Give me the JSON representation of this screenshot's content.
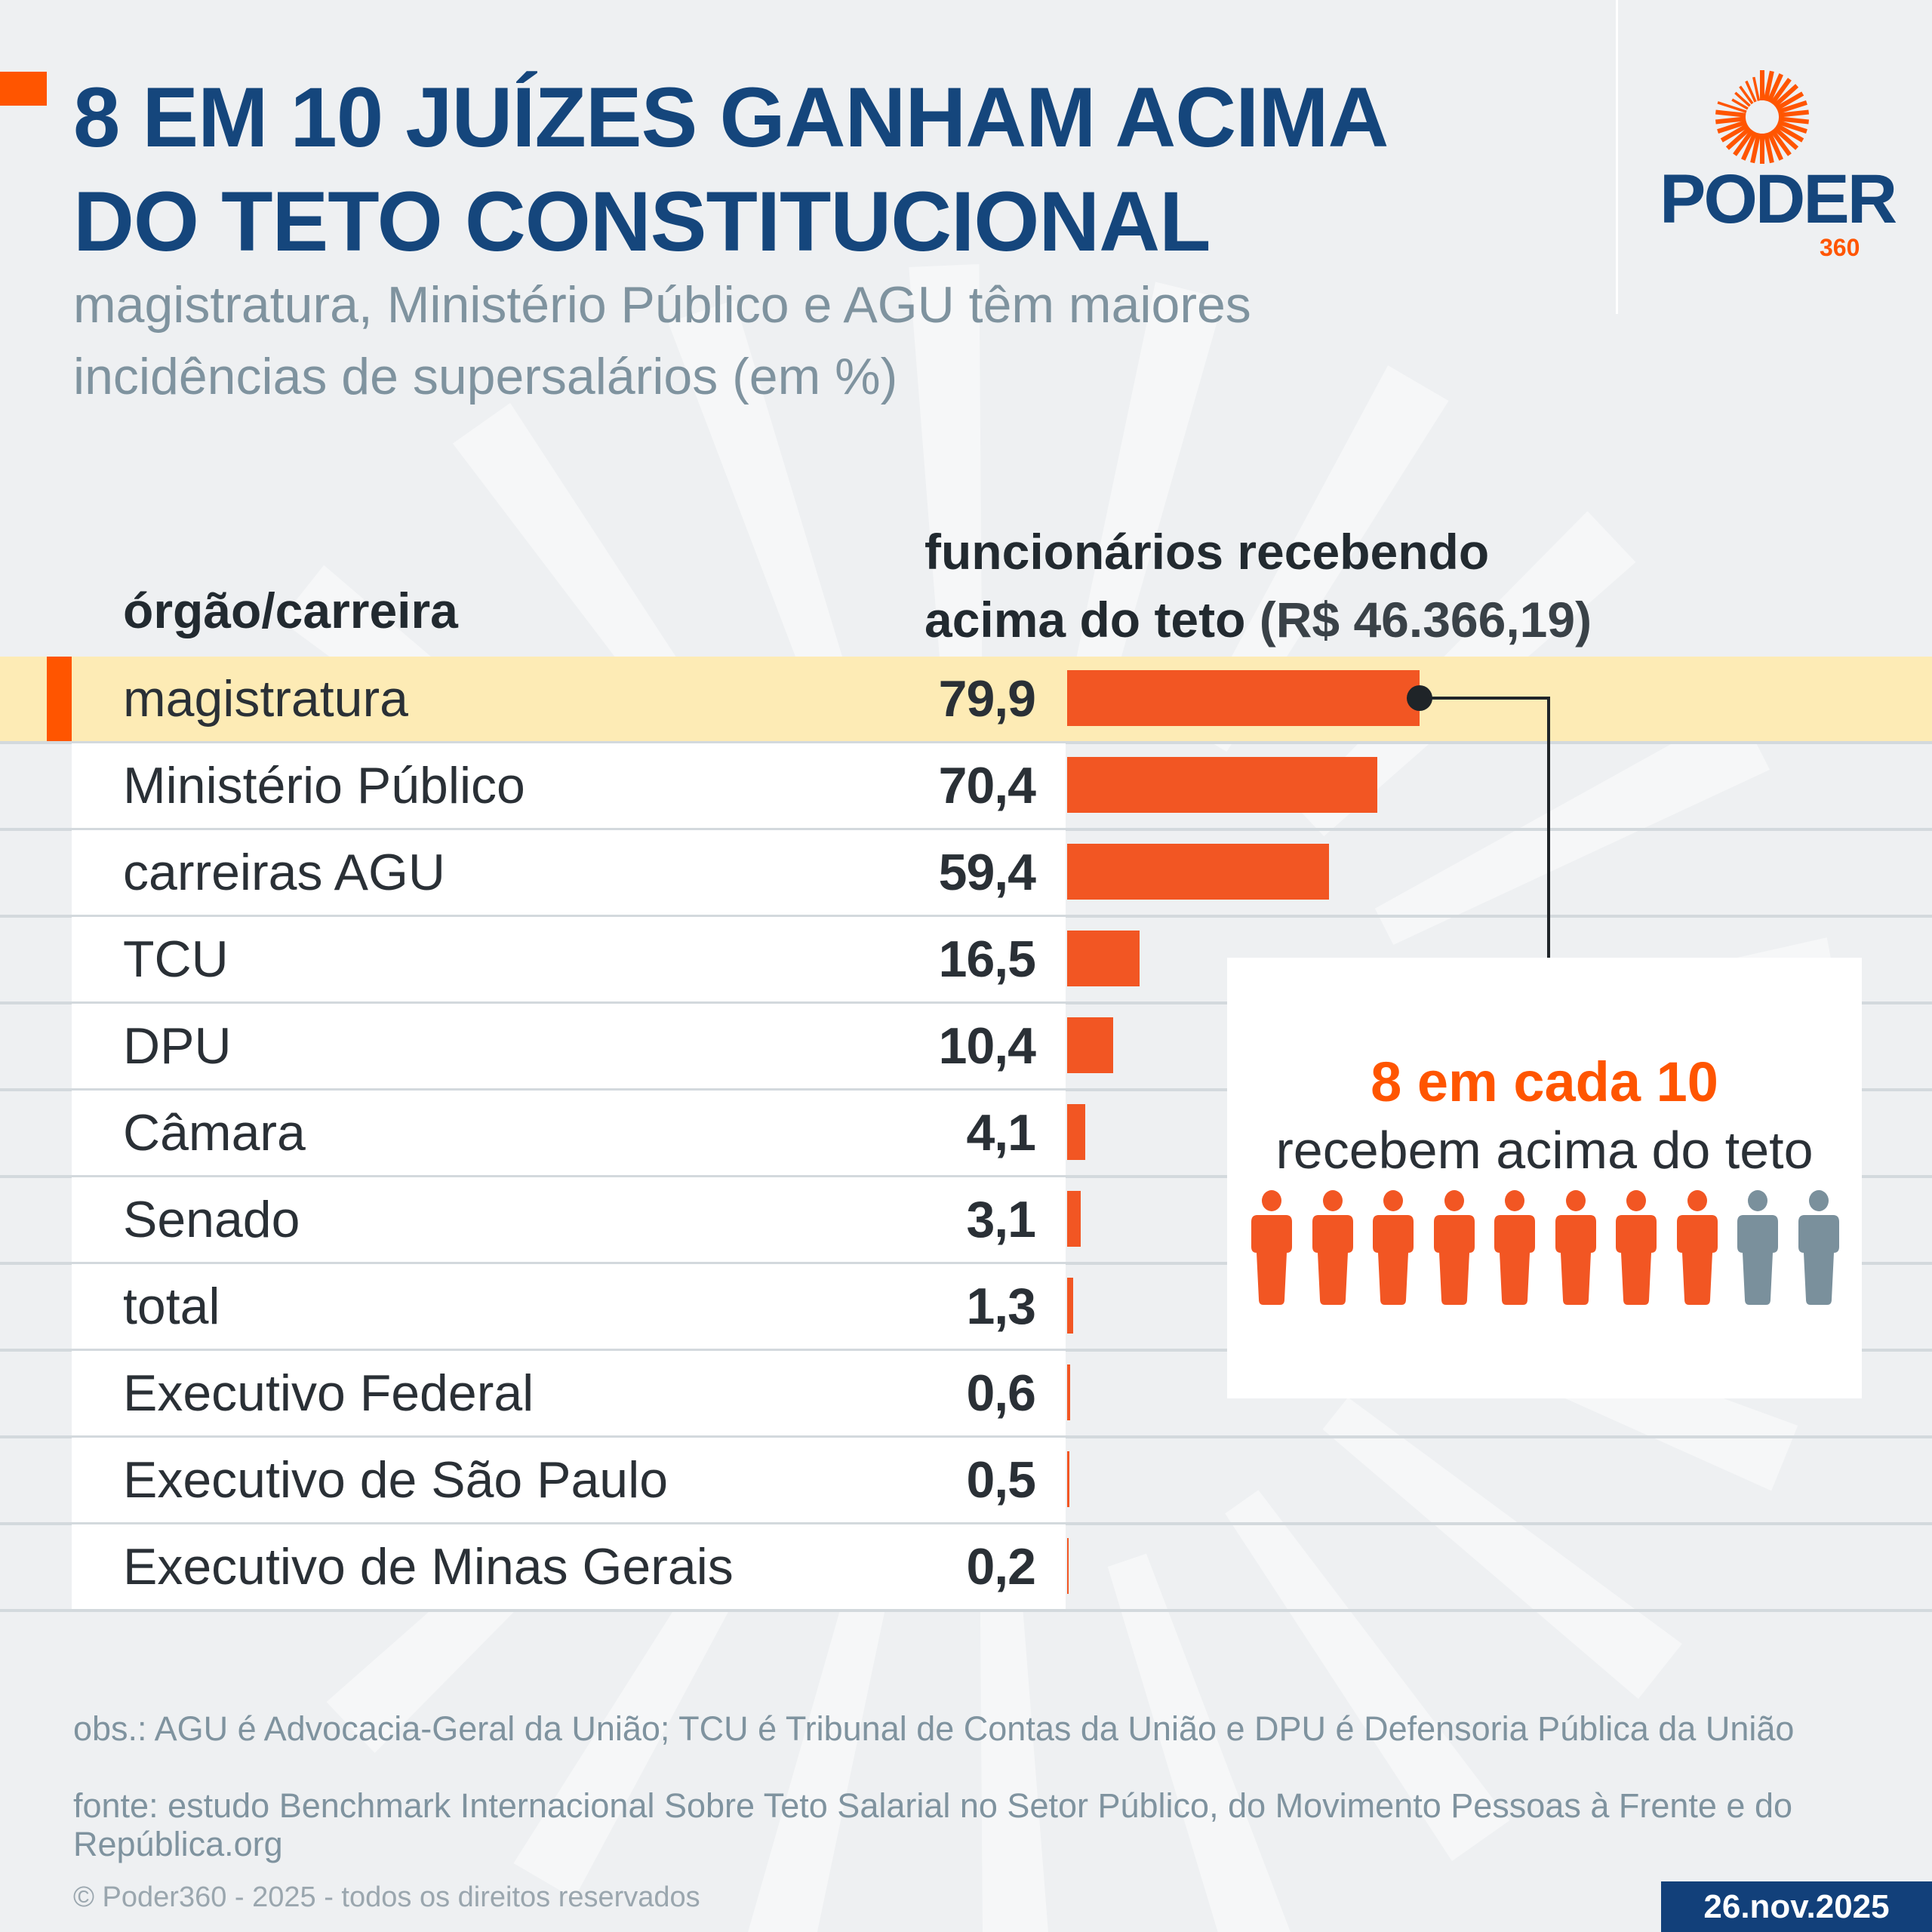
{
  "header": {
    "title_line1": "8 EM 10 JUÍZES GANHAM ACIMA",
    "title_line2": "DO TETO CONSTITUCIONAL",
    "subtitle_line1": "magistratura, Ministério Público e AGU têm maiores",
    "subtitle_line2": "incidências de supersalários (em %)"
  },
  "logo": {
    "text": "PODER",
    "sub": "360",
    "brand_color": "#ff5500",
    "navy": "#15467c"
  },
  "chart_data": {
    "type": "bar",
    "orientation": "horizontal",
    "column_header_category": "órgão/carreira",
    "column_header_value_line1": "funcionários recebendo",
    "column_header_value_line2": "acima do teto",
    "column_header_value_note": "(R$ 46.366,19)",
    "categories": [
      "magistratura",
      "Ministério Público",
      "carreiras AGU",
      "TCU",
      "DPU",
      "Câmara",
      "Senado",
      "total",
      "Executivo Federal",
      "Executivo de São Paulo",
      "Executivo de Minas Gerais"
    ],
    "values": [
      79.9,
      70.4,
      59.4,
      16.5,
      10.4,
      4.1,
      3.1,
      1.3,
      0.6,
      0.5,
      0.2
    ],
    "labels": [
      "79,9",
      "70,4",
      "59,4",
      "16,5",
      "10,4",
      "4,1",
      "3,1",
      "1,3",
      "0,6",
      "0,5",
      "0,2"
    ],
    "highlighted": "magistratura",
    "bar_color": "#f25623",
    "highlight_color": "#fdebb5"
  },
  "callout": {
    "headline": "8 em cada 10",
    "text": "recebem acima do teto",
    "filled": 8,
    "total": 10,
    "filled_color": "#f25623",
    "empty_color": "#7a909c"
  },
  "footer": {
    "obs": "obs.: AGU é Advocacia-Geral da União; TCU é Tribunal de Contas da União e DPU é Defensoria Pública da União",
    "source": "fonte: estudo Benchmark Internacional Sobre Teto Salarial no Setor Público, do Movimento Pessoas à Frente e do República.org",
    "copyright": "© Poder360 - 2025 - todos os direitos reservados",
    "date": "26.nov.2025"
  }
}
